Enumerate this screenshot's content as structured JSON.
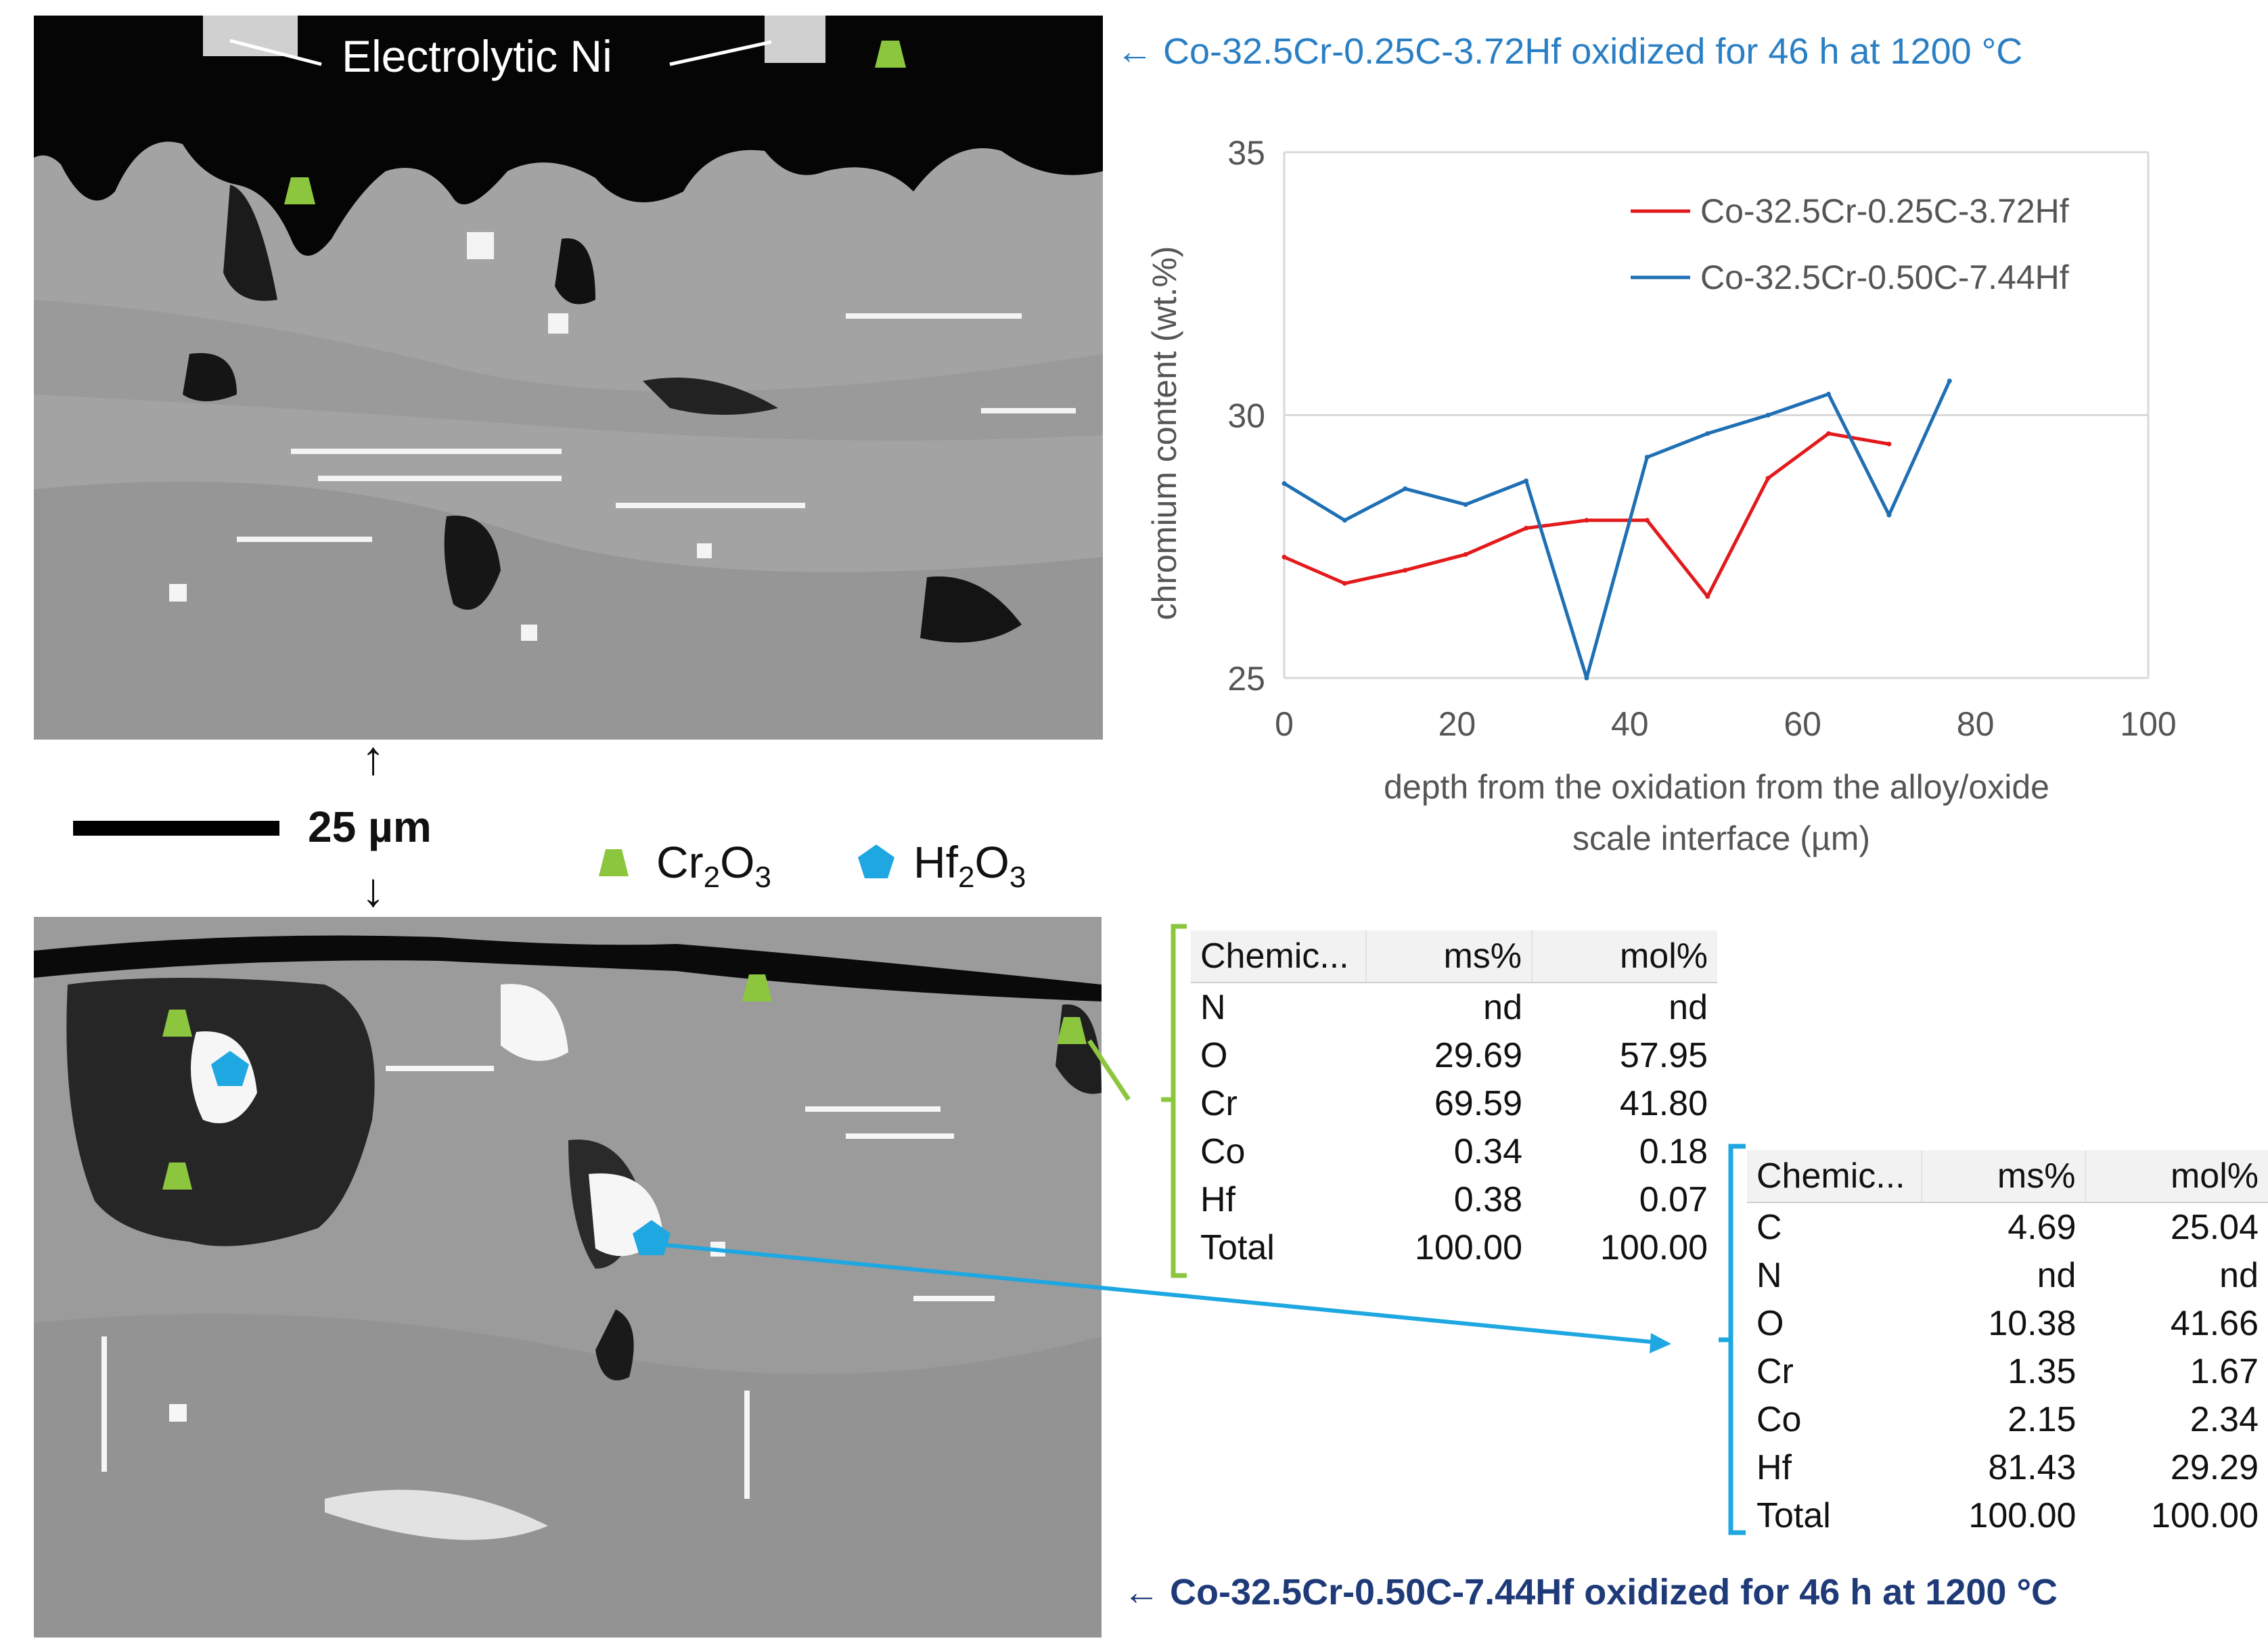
{
  "top_caption": "← Co-32.5Cr-0.25C-3.72Hf oxidized for 46 h at 1200 °C",
  "bottom_caption": "← Co-32.5Cr-0.50C-7.44Hf oxidized for 46 h at 1200 °C",
  "ni_label": "Electrolytic Ni",
  "scale": {
    "label": "25 µm",
    "arrow_up": "↑",
    "arrow_down": "↓"
  },
  "legend": [
    {
      "base": "Cr",
      "sub1": "2",
      "mid": "O",
      "sub2": "3",
      "color": "#8cc63f",
      "icon": "trapezoid-marker"
    },
    {
      "base": "Hf",
      "sub1": "2",
      "mid": "O",
      "sub2": "3",
      "color": "#1ea7e1",
      "icon": "pentagon-marker"
    }
  ],
  "chart_data": {
    "type": "line",
    "xlabel": "depth from the oxidation from the alloy/oxide scale interface (µm)",
    "ylabel": "chromium content (wt.%)",
    "xlim": [
      0,
      100
    ],
    "ylim": [
      25,
      35
    ],
    "xticks": [
      0,
      20,
      40,
      60,
      80,
      100
    ],
    "yticks": [
      25,
      30,
      35
    ],
    "grid": "horizontal",
    "legend_position": "top-right",
    "series": [
      {
        "name": "Co-32.5Cr-0.25C-3.72Hf",
        "color": "#e31a1c",
        "x": [
          0,
          7,
          14,
          21,
          28,
          35,
          42,
          49,
          56,
          63,
          70
        ],
        "y": [
          27.3,
          26.8,
          27.05,
          27.35,
          27.85,
          28.0,
          28.0,
          26.55,
          28.8,
          29.65,
          29.45
        ]
      },
      {
        "name": "Co-32.5Cr-0.50C-7.44Hf",
        "color": "#1f6fb4",
        "x": [
          0,
          7,
          14,
          21,
          28,
          35,
          42,
          49,
          56,
          63,
          70,
          77
        ],
        "y": [
          28.7,
          28.0,
          28.6,
          28.3,
          28.75,
          24.9,
          29.2,
          29.65,
          30.0,
          30.4,
          28.1,
          30.65
        ]
      }
    ]
  },
  "table_cr2o3": {
    "headers": [
      "Chemic...",
      "ms%",
      "mol%"
    ],
    "rows": [
      [
        "N",
        "nd",
        "nd"
      ],
      [
        "O",
        "29.69",
        "57.95"
      ],
      [
        "Cr",
        "69.59",
        "41.80"
      ],
      [
        "Co",
        "0.34",
        "0.18"
      ],
      [
        "Hf",
        "0.38",
        "0.07"
      ],
      [
        "Total",
        "100.00",
        "100.00"
      ]
    ]
  },
  "table_hf2o3": {
    "headers": [
      "Chemic...",
      "ms%",
      "mol%"
    ],
    "rows": [
      [
        "C",
        "4.69",
        "25.04"
      ],
      [
        "N",
        "nd",
        "nd"
      ],
      [
        "O",
        "10.38",
        "41.66"
      ],
      [
        "Cr",
        "1.35",
        "1.67"
      ],
      [
        "Co",
        "2.15",
        "2.34"
      ],
      [
        "Hf",
        "81.43",
        "29.29"
      ],
      [
        "Total",
        "100.00",
        "100.00"
      ]
    ]
  },
  "colors": {
    "cr2o3_green": "#8cc63f",
    "hf2o3_blue": "#1ea7e1"
  }
}
